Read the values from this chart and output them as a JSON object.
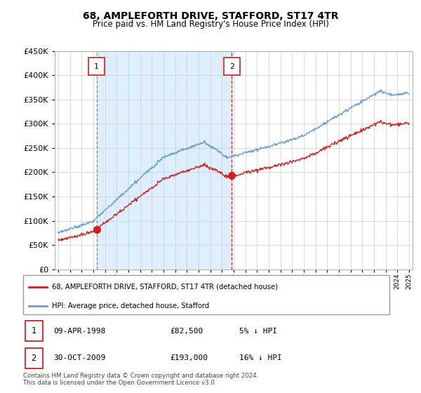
{
  "title": "68, AMPLEFORTH DRIVE, STAFFORD, ST17 4TR",
  "subtitle": "Price paid vs. HM Land Registry's House Price Index (HPI)",
  "legend_line1": "68, AMPLEFORTH DRIVE, STAFFORD, ST17 4TR (detached house)",
  "legend_line2": "HPI: Average price, detached house, Stafford",
  "transaction1_date": "09-APR-1998",
  "transaction1_price": "£82,500",
  "transaction1_hpi": "5% ↓ HPI",
  "transaction2_date": "30-OCT-2009",
  "transaction2_price": "£193,000",
  "transaction2_hpi": "16% ↓ HPI",
  "footer": "Contains HM Land Registry data © Crown copyright and database right 2024.\nThis data is licensed under the Open Government Licence v3.0.",
  "hpi_color": "#6699cc",
  "price_color": "#cc2222",
  "marker_color": "#cc2222",
  "vline1_color": "#888888",
  "vline2_color": "#cc2222",
  "shade_color": "#ddeeff",
  "background_color": "#ffffff",
  "grid_color": "#cccccc",
  "ylim": [
    0,
    450000
  ],
  "yticks": [
    0,
    50000,
    100000,
    150000,
    200000,
    250000,
    300000,
    350000,
    400000,
    450000
  ],
  "transaction1_x": 1998.27,
  "transaction1_y": 82500,
  "transaction2_x": 2009.83,
  "transaction2_y": 193000,
  "xmin": 1995,
  "xmax": 2025
}
